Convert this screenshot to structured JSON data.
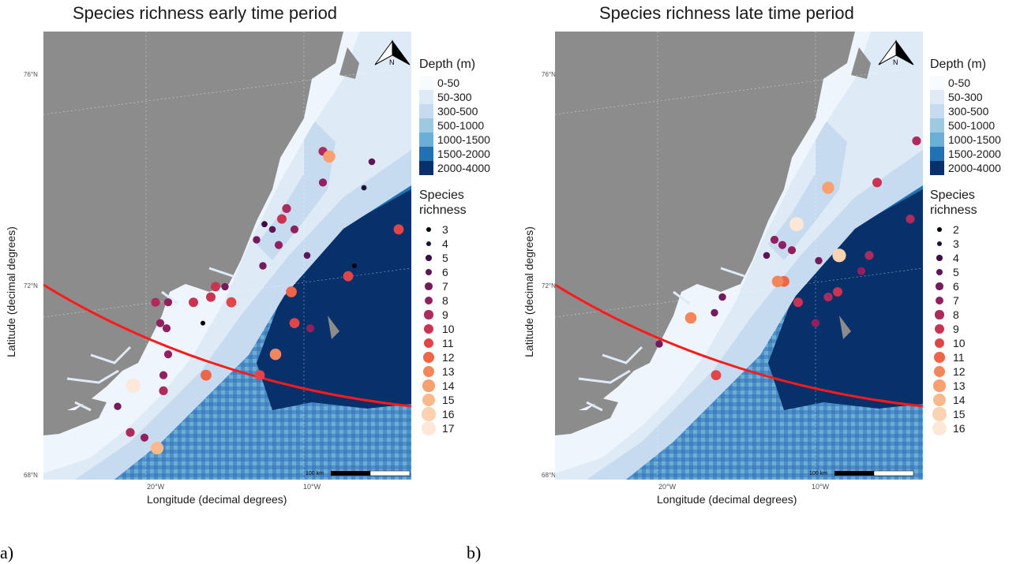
{
  "colors": {
    "land": "#8c8c8c",
    "trend_line": "#ff1a1a"
  },
  "panels": [
    {
      "title": "Species richness early time period",
      "subfigure": "a)",
      "xlabel": "Longitude (decimal degrees)",
      "ylabel": "Latitude (decimal degrees)",
      "lat_ticks": [
        "76°N",
        "72°N",
        "68°N"
      ],
      "lon_ticks": [
        "20°W",
        "10°W"
      ],
      "north_arrow": "N",
      "scale_bar": "100 km",
      "depth_legend": {
        "title": "Depth (m)",
        "items": [
          {
            "label": "0-50",
            "color": "#f7fbff"
          },
          {
            "label": "50-300",
            "color": "#deebf7"
          },
          {
            "label": "300-500",
            "color": "#c6dbef"
          },
          {
            "label": "500-1000",
            "color": "#9ecae1"
          },
          {
            "label": "1000-1500",
            "color": "#6baed6"
          },
          {
            "label": "1500-2000",
            "color": "#2171b5"
          },
          {
            "label": "2000-4000",
            "color": "#08306b"
          }
        ]
      },
      "richness_legend": {
        "title_line1": "Species",
        "title_line2": "richness",
        "items": [
          {
            "label": "3",
            "color": "#000004"
          },
          {
            "label": "4",
            "color": "#1d1135"
          },
          {
            "label": "5",
            "color": "#3b0f45"
          },
          {
            "label": "6",
            "color": "#5a1657"
          },
          {
            "label": "7",
            "color": "#751a5d"
          },
          {
            "label": "8",
            "color": "#922060"
          },
          {
            "label": "9",
            "color": "#ae2b5e"
          },
          {
            "label": "10",
            "color": "#cb3352"
          },
          {
            "label": "11",
            "color": "#e24548"
          },
          {
            "label": "12",
            "color": "#ef6548"
          },
          {
            "label": "13",
            "color": "#f5855a"
          },
          {
            "label": "14",
            "color": "#f8a070"
          },
          {
            "label": "15",
            "color": "#f9b98d"
          },
          {
            "label": "16",
            "color": "#fbd3b3"
          },
          {
            "label": "17",
            "color": "#fde8d8"
          }
        ]
      },
      "points": [
        {
          "lon": -7.2,
          "lat": 75.0,
          "richness": 6
        },
        {
          "lon": -10.3,
          "lat": 75.2,
          "richness": 9
        },
        {
          "lon": -9.9,
          "lat": 75.1,
          "richness": 14
        },
        {
          "lon": -10.3,
          "lat": 74.6,
          "richness": 8
        },
        {
          "lon": -7.7,
          "lat": 74.5,
          "richness": 4
        },
        {
          "lon": -5.5,
          "lat": 73.7,
          "richness": 11
        },
        {
          "lon": -12.6,
          "lat": 74.1,
          "richness": 9
        },
        {
          "lon": -12.9,
          "lat": 73.9,
          "richness": 10
        },
        {
          "lon": -12.1,
          "lat": 73.7,
          "richness": 8
        },
        {
          "lon": -14.0,
          "lat": 73.8,
          "richness": 5
        },
        {
          "lon": -13.5,
          "lat": 73.7,
          "richness": 6
        },
        {
          "lon": -14.5,
          "lat": 73.5,
          "richness": 7
        },
        {
          "lon": -13.1,
          "lat": 73.4,
          "richness": 8
        },
        {
          "lon": -11.3,
          "lat": 73.2,
          "richness": 6
        },
        {
          "lon": -14.1,
          "lat": 73.0,
          "richness": 7
        },
        {
          "lon": -8.3,
          "lat": 73.0,
          "richness": 3
        },
        {
          "lon": -8.7,
          "lat": 72.8,
          "richness": 11
        },
        {
          "lon": -16.5,
          "lat": 72.6,
          "richness": 7
        },
        {
          "lon": -17.1,
          "lat": 72.6,
          "richness": 10
        },
        {
          "lon": -12.3,
          "lat": 72.5,
          "richness": 12
        },
        {
          "lon": -17.4,
          "lat": 72.4,
          "richness": 10
        },
        {
          "lon": -16.1,
          "lat": 72.3,
          "richness": 11
        },
        {
          "lon": -18.5,
          "lat": 72.3,
          "richness": 10
        },
        {
          "lon": -20.1,
          "lat": 72.3,
          "richness": 8
        },
        {
          "lon": -20.9,
          "lat": 72.3,
          "richness": 9
        },
        {
          "lon": -17.9,
          "lat": 71.9,
          "richness": 3
        },
        {
          "lon": -12.1,
          "lat": 71.9,
          "richness": 11
        },
        {
          "lon": -11.1,
          "lat": 71.8,
          "richness": 8
        },
        {
          "lon": -20.6,
          "lat": 71.9,
          "richness": 8
        },
        {
          "lon": -20.2,
          "lat": 71.8,
          "richness": 8
        },
        {
          "lon": -13.3,
          "lat": 71.3,
          "richness": 13
        },
        {
          "lon": -20.1,
          "lat": 71.3,
          "richness": 8
        },
        {
          "lon": -17.7,
          "lat": 70.9,
          "richness": 12
        },
        {
          "lon": -14.3,
          "lat": 70.9,
          "richness": 11
        },
        {
          "lon": -20.4,
          "lat": 70.9,
          "richness": 8
        },
        {
          "lon": -20.4,
          "lat": 70.6,
          "richness": 9
        },
        {
          "lon": -22.3,
          "lat": 70.7,
          "richness": 17
        },
        {
          "lon": -23.3,
          "lat": 70.3,
          "richness": 7
        },
        {
          "lon": -22.5,
          "lat": 69.8,
          "richness": 9
        },
        {
          "lon": -21.6,
          "lat": 69.7,
          "richness": 8
        },
        {
          "lon": -20.8,
          "lat": 69.5,
          "richness": 15
        }
      ]
    },
    {
      "title": "Species richness late time period",
      "subfigure": "b)",
      "xlabel": "Longitude (decimal degrees)",
      "ylabel": "Latitude (decimal degrees)",
      "lat_ticks": [
        "76°N",
        "72°N",
        "68°N"
      ],
      "lon_ticks": [
        "20°W",
        "10°W"
      ],
      "north_arrow": "N",
      "scale_bar": "100 km",
      "depth_legend": {
        "title": "Depth (m)",
        "items": [
          {
            "label": "0-50",
            "color": "#f7fbff"
          },
          {
            "label": "50-300",
            "color": "#deebf7"
          },
          {
            "label": "300-500",
            "color": "#c6dbef"
          },
          {
            "label": "500-1000",
            "color": "#9ecae1"
          },
          {
            "label": "1000-1500",
            "color": "#6baed6"
          },
          {
            "label": "1500-2000",
            "color": "#2171b5"
          },
          {
            "label": "2000-4000",
            "color": "#08306b"
          }
        ]
      },
      "richness_legend": {
        "title_line1": "Species",
        "title_line2": "richness",
        "items": [
          {
            "label": "2",
            "color": "#000004"
          },
          {
            "label": "3",
            "color": "#1d1135"
          },
          {
            "label": "4",
            "color": "#3b0f45"
          },
          {
            "label": "5",
            "color": "#5a1657"
          },
          {
            "label": "6",
            "color": "#751a5d"
          },
          {
            "label": "7",
            "color": "#922060"
          },
          {
            "label": "8",
            "color": "#ae2b5e"
          },
          {
            "label": "9",
            "color": "#cb3352"
          },
          {
            "label": "10",
            "color": "#e24548"
          },
          {
            "label": "11",
            "color": "#ef6548"
          },
          {
            "label": "12",
            "color": "#f5855a"
          },
          {
            "label": "13",
            "color": "#f8a070"
          },
          {
            "label": "14",
            "color": "#f9b98d"
          },
          {
            "label": "15",
            "color": "#fbd3b3"
          },
          {
            "label": "16",
            "color": "#fde8d8"
          }
        ]
      },
      "points": [
        {
          "lon": -5.1,
          "lat": 75.4,
          "richness": 8
        },
        {
          "lon": -7.6,
          "lat": 74.6,
          "richness": 9
        },
        {
          "lon": -10.7,
          "lat": 74.5,
          "richness": 13
        },
        {
          "lon": -5.5,
          "lat": 73.9,
          "richness": 8
        },
        {
          "lon": -12.7,
          "lat": 73.8,
          "richness": 16
        },
        {
          "lon": -14.1,
          "lat": 73.5,
          "richness": 7
        },
        {
          "lon": -13.6,
          "lat": 73.4,
          "richness": 7
        },
        {
          "lon": -13.0,
          "lat": 73.3,
          "richness": 7
        },
        {
          "lon": -14.6,
          "lat": 73.2,
          "richness": 5
        },
        {
          "lon": -11.3,
          "lat": 73.1,
          "richness": 6
        },
        {
          "lon": -10.0,
          "lat": 73.2,
          "richness": 15
        },
        {
          "lon": -8.1,
          "lat": 73.2,
          "richness": 8
        },
        {
          "lon": -8.6,
          "lat": 72.9,
          "richness": 7
        },
        {
          "lon": -13.5,
          "lat": 72.7,
          "richness": 11
        },
        {
          "lon": -13.9,
          "lat": 72.7,
          "richness": 12
        },
        {
          "lon": -10.1,
          "lat": 72.5,
          "richness": 9
        },
        {
          "lon": -10.7,
          "lat": 72.4,
          "richness": 8
        },
        {
          "lon": -12.6,
          "lat": 72.3,
          "richness": 9
        },
        {
          "lon": -17.4,
          "lat": 72.4,
          "richness": 6
        },
        {
          "lon": -17.9,
          "lat": 72.1,
          "richness": 6
        },
        {
          "lon": -11.5,
          "lat": 71.9,
          "richness": 7
        },
        {
          "lon": -19.4,
          "lat": 72.0,
          "richness": 12
        },
        {
          "lon": -21.4,
          "lat": 71.5,
          "richness": 6
        },
        {
          "lon": -17.8,
          "lat": 70.9,
          "richness": 10
        }
      ]
    }
  ]
}
